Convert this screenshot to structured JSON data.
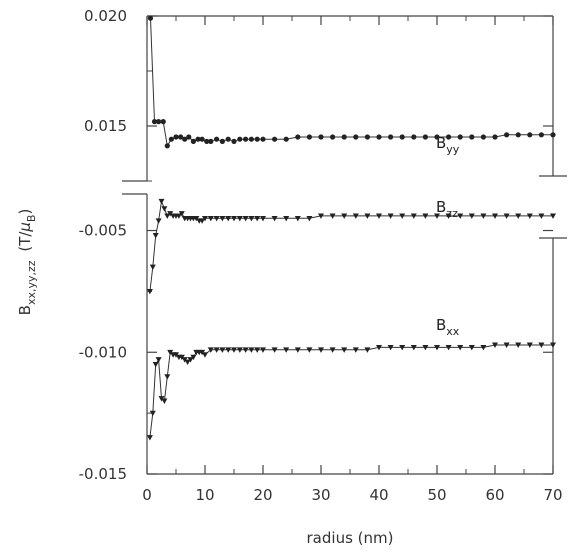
{
  "chart_data": {
    "type": "line",
    "title": "",
    "xlabel": "radius (nm)",
    "ylabel": "B",
    "ylabel_sub": "xx,yy,zz",
    "ylabel_unit_open": "(T/",
    "ylabel_unit_mu": "μ",
    "ylabel_unit_sub": "B",
    "ylabel_unit_close": ")",
    "xlim": [
      0,
      70
    ],
    "x_ticks": [
      "0",
      "10",
      "20",
      "30",
      "40",
      "50",
      "60",
      "70"
    ],
    "grid": false,
    "broken_y_axis": true,
    "upper_panel": {
      "ylim": [
        0.0125,
        0.02
      ],
      "y_ticks": [
        "0.020",
        "0.015"
      ]
    },
    "lower_panel": {
      "ylim": [
        -0.015,
        -0.0035
      ],
      "y_ticks": [
        "-0.005",
        "-0.010",
        "-0.015"
      ]
    },
    "series": [
      {
        "name": "B",
        "sub": "yy",
        "panel": "upper",
        "marker": "circle",
        "x": [
          0.6,
          1.3,
          2.0,
          2.8,
          3.5,
          4.2,
          5.0,
          5.8,
          6.5,
          7.2,
          8.0,
          8.8,
          9.5,
          10.3,
          11.0,
          12.0,
          13.0,
          14.0,
          15.0,
          16.0,
          17.0,
          18.0,
          19.0,
          20.0,
          22.0,
          24.0,
          26.0,
          28.0,
          30.0,
          32.0,
          34.0,
          36.0,
          38.0,
          40.0,
          42.0,
          44.0,
          46.0,
          48.0,
          50.0,
          52.0,
          54.0,
          56.0,
          58.0,
          60.0,
          62.0,
          64.0,
          66.0,
          68.0,
          70.0
        ],
        "y": [
          0.0199,
          0.0152,
          0.0152,
          0.0152,
          0.0141,
          0.0144,
          0.0145,
          0.0145,
          0.0144,
          0.0145,
          0.0143,
          0.0144,
          0.0144,
          0.0143,
          0.0143,
          0.0144,
          0.0143,
          0.0144,
          0.0143,
          0.0144,
          0.0144,
          0.0144,
          0.0144,
          0.0144,
          0.0144,
          0.0144,
          0.0145,
          0.0145,
          0.0145,
          0.0145,
          0.0145,
          0.0145,
          0.0145,
          0.0145,
          0.0145,
          0.0145,
          0.0145,
          0.0145,
          0.0145,
          0.0145,
          0.0145,
          0.0145,
          0.0145,
          0.0145,
          0.0146,
          0.0146,
          0.0146,
          0.0146,
          0.0146
        ]
      },
      {
        "name": "B",
        "sub": "zz",
        "panel": "lower",
        "marker": "triangle-down",
        "x": [
          0.5,
          1.0,
          1.5,
          2.0,
          2.5,
          3.0,
          3.5,
          4.0,
          4.5,
          5.0,
          5.5,
          6.0,
          6.5,
          7.0,
          7.5,
          8.0,
          8.5,
          9.0,
          9.5,
          10.0,
          11.0,
          12.0,
          13.0,
          14.0,
          15.0,
          16.0,
          17.0,
          18.0,
          19.0,
          20.0,
          22.0,
          24.0,
          26.0,
          28.0,
          30.0,
          32.0,
          34.0,
          36.0,
          38.0,
          40.0,
          42.0,
          44.0,
          46.0,
          48.0,
          50.0,
          52.0,
          54.0,
          56.0,
          58.0,
          60.0,
          62.0,
          64.0,
          66.0,
          68.0,
          70.0
        ],
        "y": [
          -0.0075,
          -0.0065,
          -0.0052,
          -0.0046,
          -0.0038,
          -0.0041,
          -0.0044,
          -0.0043,
          -0.0044,
          -0.0044,
          -0.0044,
          -0.0043,
          -0.0045,
          -0.0045,
          -0.0045,
          -0.0045,
          -0.0045,
          -0.0046,
          -0.0046,
          -0.0045,
          -0.0045,
          -0.0045,
          -0.0045,
          -0.0045,
          -0.0045,
          -0.0045,
          -0.0045,
          -0.0045,
          -0.0045,
          -0.0045,
          -0.0045,
          -0.0045,
          -0.0045,
          -0.0045,
          -0.0044,
          -0.0044,
          -0.0044,
          -0.0044,
          -0.0044,
          -0.0044,
          -0.0044,
          -0.0044,
          -0.0044,
          -0.0044,
          -0.0044,
          -0.0044,
          -0.0044,
          -0.0044,
          -0.0044,
          -0.0044,
          -0.0044,
          -0.0044,
          -0.0044,
          -0.0044,
          -0.0044
        ]
      },
      {
        "name": "B",
        "sub": "xx",
        "panel": "lower",
        "marker": "triangle-down",
        "x": [
          0.5,
          1.0,
          1.5,
          2.0,
          2.5,
          3.0,
          3.5,
          4.0,
          4.5,
          5.0,
          5.5,
          6.0,
          6.5,
          7.0,
          7.5,
          8.0,
          8.5,
          9.0,
          9.5,
          10.0,
          11.0,
          12.0,
          13.0,
          14.0,
          15.0,
          16.0,
          17.0,
          18.0,
          19.0,
          20.0,
          22.0,
          24.0,
          26.0,
          28.0,
          30.0,
          32.0,
          34.0,
          36.0,
          38.0,
          40.0,
          42.0,
          44.0,
          46.0,
          48.0,
          50.0,
          52.0,
          54.0,
          56.0,
          58.0,
          60.0,
          62.0,
          64.0,
          66.0,
          68.0,
          70.0
        ],
        "y": [
          -0.0135,
          -0.0125,
          -0.0105,
          -0.0103,
          -0.0119,
          -0.012,
          -0.011,
          -0.01,
          -0.0101,
          -0.0101,
          -0.0102,
          -0.0102,
          -0.0103,
          -0.0104,
          -0.0103,
          -0.0102,
          -0.01,
          -0.01,
          -0.01,
          -0.0101,
          -0.0099,
          -0.0099,
          -0.0099,
          -0.0099,
          -0.0099,
          -0.0099,
          -0.0099,
          -0.0099,
          -0.0099,
          -0.0099,
          -0.0099,
          -0.0099,
          -0.0099,
          -0.0099,
          -0.0099,
          -0.0099,
          -0.0099,
          -0.0099,
          -0.0099,
          -0.0098,
          -0.0098,
          -0.0098,
          -0.0098,
          -0.0098,
          -0.0098,
          -0.0098,
          -0.0098,
          -0.0098,
          -0.0098,
          -0.0097,
          -0.0097,
          -0.0097,
          -0.0097,
          -0.0097,
          -0.0097
        ]
      }
    ]
  }
}
